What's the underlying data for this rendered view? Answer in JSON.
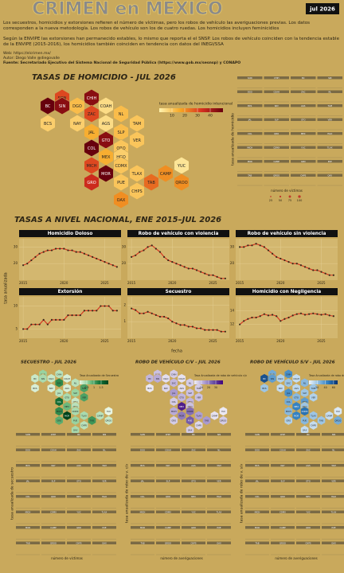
{
  "header": {
    "title": "CRIMEN en MEXICO",
    "badge": "jul 2026",
    "description": "Los secuestros, homicidios y extorsiones refieren el número de víctimas, pero los robos de vehículo las averiguaciones previas. Los datos corresponden a la nueva metodología. Los robos de vehículo son los de cuatro ruedas. Los homicidios incluyen feminicidios",
    "description2": "Según la ENVIPE las extorsiones han permanecido estables, lo mismo que reporta el el SNSP. Los robos de vehículo coinciden con la tendencia estable de la ENVIPE (2015-2016), los homicidios también coinciden en tendencia con datos del INEGI/SSA",
    "web": "Web: https://elcrimen.mx/",
    "author": "Autor: Diego Valle @diegovalle",
    "source": "Fuente: Secretariado Ejecutivo del Sistema Nacional de Seguridad Pública (https://www.gob.mx/sesnsp) y CONAPO"
  },
  "states": [
    "SON",
    "CHIH",
    "BC",
    "SIN",
    "DGO",
    "COAH",
    "ZAC",
    "NL",
    "BCS",
    "NAY",
    "AGS",
    "TAM",
    "JAL",
    "SLP",
    "GTO",
    "VER",
    "COL",
    "QRO",
    "MEX",
    "HGO",
    "MICH",
    "CDMX",
    "YUC",
    "TLAX",
    "MOR",
    "CAMP",
    "GRO",
    "PUE",
    "TAB",
    "QROO",
    "CHPS",
    "OAX"
  ],
  "homicide_map": {
    "type": "hexmap",
    "title": "TASAS DE HOMICIDIO - JUL 2026",
    "legend_title": "tasa anualizada de homicidio intencional",
    "values": [
      30,
      45,
      50,
      45,
      12,
      5,
      30,
      12,
      8,
      8,
      5,
      10,
      15,
      12,
      45,
      10,
      55,
      10,
      15,
      8,
      30,
      10,
      3,
      10,
      50,
      20,
      35,
      10,
      25,
      20,
      10,
      20
    ],
    "colorlim": [
      0,
      50
    ],
    "ticks": [
      10,
      20,
      30,
      40
    ],
    "colors": [
      "#fff3b0",
      "#f6a623",
      "#d7301f",
      "#67000d"
    ]
  },
  "state_trends": {
    "ylabel": "tasa anualizada de homicidio",
    "legend_title": "número de víctimas",
    "legend_sizes": [
      25,
      50,
      75,
      100
    ]
  },
  "national": {
    "type": "scatter",
    "title": "TASAS A NIVEL NACIONAL, ENE 2015–JUL 2026",
    "ylabel": "tasa anualizada",
    "xlabel": "fecha",
    "x": [
      2015,
      2015.5,
      2016,
      2016.5,
      2017,
      2017.5,
      2018,
      2018.5,
      2019,
      2019.5,
      2020,
      2020.5,
      2021,
      2021.5,
      2022,
      2022.5,
      2023,
      2023.5,
      2024,
      2024.5,
      2025,
      2025.5,
      2026,
      2026.5
    ],
    "xlim": [
      2014.5,
      2027
    ],
    "xticks": [
      2015,
      2020,
      2025
    ],
    "point_color": "#3a2a1a",
    "line_color": "#d7301f",
    "panels": [
      {
        "title": "Homicidio Doloso",
        "ylim": [
          10,
          35
        ],
        "yticks": [
          20,
          30
        ],
        "values": [
          19,
          20,
          22,
          24,
          26,
          27,
          28,
          28,
          29,
          29,
          29,
          28,
          28,
          27,
          27,
          26,
          25,
          24,
          23,
          22,
          21,
          20,
          19,
          18
        ]
      },
      {
        "title": "Robo de vehículo con violencia",
        "ylim": [
          10,
          35
        ],
        "yticks": [
          20,
          30
        ],
        "values": [
          24,
          25,
          27,
          28,
          30,
          31,
          29,
          27,
          24,
          22,
          21,
          20,
          19,
          18,
          17,
          17,
          16,
          15,
          14,
          13,
          13,
          12,
          11,
          11
        ]
      },
      {
        "title": "Robo de vehículo sin violencia",
        "ylim": [
          10,
          35
        ],
        "yticks": [
          20,
          30
        ],
        "values": [
          30,
          30,
          31,
          31,
          32,
          31,
          30,
          28,
          26,
          24,
          23,
          22,
          21,
          20,
          20,
          19,
          18,
          17,
          16,
          16,
          15,
          14,
          13,
          13
        ]
      },
      {
        "title": "Extorsión",
        "ylim": [
          3,
          12
        ],
        "yticks": [
          5,
          10
        ],
        "values": [
          5,
          5,
          6,
          6,
          6,
          7,
          6,
          7,
          7,
          7,
          7,
          8,
          8,
          8,
          8,
          9,
          9,
          9,
          9,
          10,
          10,
          10,
          9,
          9
        ]
      },
      {
        "title": "Secuestro",
        "ylim": [
          0,
          2.5
        ],
        "yticks": [
          1,
          2
        ],
        "values": [
          1.8,
          1.7,
          1.5,
          1.5,
          1.6,
          1.5,
          1.4,
          1.3,
          1.3,
          1.2,
          1.0,
          0.9,
          0.8,
          0.8,
          0.7,
          0.7,
          0.6,
          0.6,
          0.5,
          0.5,
          0.5,
          0.5,
          0.4,
          0.4
        ]
      },
      {
        "title": "Homicidio con Negligencia",
        "ylim": [
          10,
          16
        ],
        "yticks": [
          12,
          14
        ],
        "values": [
          12,
          12.5,
          12.8,
          13,
          13,
          13.2,
          13.5,
          13.3,
          13.4,
          13.2,
          12.5,
          12.8,
          13,
          13.3,
          13.5,
          13.6,
          13.4,
          13.5,
          13.6,
          13.5,
          13.4,
          13.5,
          13.3,
          13.2
        ]
      }
    ]
  },
  "bottom_maps": [
    {
      "type": "hexmap",
      "title": "SECUESTRO - JUL 2026",
      "legend_title": "Tasa Anualizada de Secuestro",
      "values": [
        0.5,
        0.3,
        0.2,
        0.4,
        0.2,
        0.1,
        1.2,
        0.3,
        0.1,
        0.1,
        0.1,
        1.0,
        0.3,
        0.5,
        0.4,
        1.0,
        1.5,
        0.2,
        0.8,
        0.3,
        1.2,
        0.4,
        0.0,
        0.4,
        2.0,
        0.3,
        0.9,
        0.5,
        1.1,
        0.2,
        0.3,
        0.4
      ],
      "colorlim": [
        0,
        2
      ],
      "ticks": [
        0.5,
        1,
        1.5
      ],
      "colors": [
        "#e8f5e3",
        "#7fc88a",
        "#1b7a3d",
        "#00441b"
      ],
      "ylabel": "tasa anualizada de secuestro",
      "legend2": "número de víctimas"
    },
    {
      "type": "hexmap",
      "title": "ROBO DE VEHÍCULO C/V - JUL 2026",
      "legend_title": "Tasa Anualizada de robo de vehículo c/v",
      "values": [
        8,
        6,
        10,
        12,
        3,
        2,
        10,
        6,
        1,
        4,
        3,
        6,
        15,
        8,
        10,
        8,
        6,
        10,
        35,
        8,
        12,
        22,
        1,
        14,
        20,
        2,
        6,
        25,
        15,
        6,
        4,
        6
      ],
      "colorlim": [
        0,
        40
      ],
      "ticks": [
        10,
        20,
        30
      ],
      "colors": [
        "#efedf5",
        "#b3a4d4",
        "#6a51a3",
        "#3f007d"
      ],
      "ylabel": "tasa anualizada de robo de v. c/v",
      "legend2": "número de averiguaciones"
    },
    {
      "type": "hexmap",
      "title": "ROBO DE VEHÍCULO S/V - JUL 2026",
      "legend_title": "Tasa Anualizada de robo de vehículo s/v",
      "values": [
        30,
        40,
        60,
        35,
        15,
        10,
        20,
        25,
        20,
        10,
        12,
        20,
        40,
        20,
        25,
        15,
        30,
        35,
        45,
        20,
        25,
        50,
        5,
        20,
        45,
        10,
        15,
        25,
        20,
        30,
        10,
        10
      ],
      "colorlim": [
        0,
        70
      ],
      "ticks": [
        20,
        40,
        60
      ],
      "colors": [
        "#eef4fb",
        "#8fbde0",
        "#2f7dbf",
        "#08306b"
      ],
      "ylabel": "tasa anualizada de robo de v. s/v",
      "legend2": "número de averiguaciones"
    }
  ]
}
